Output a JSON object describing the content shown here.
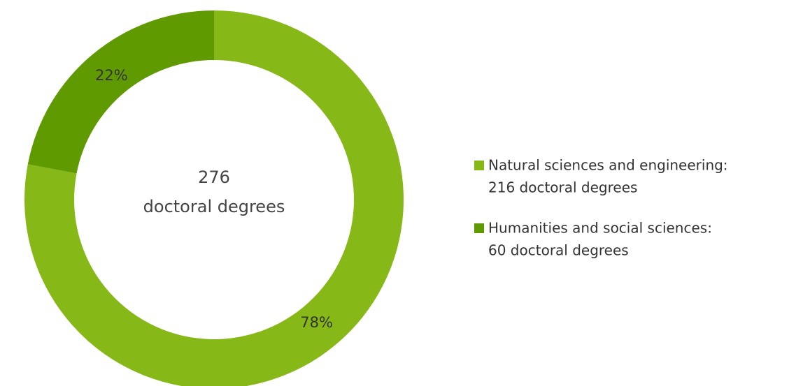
{
  "chart_data": {
    "type": "donut",
    "categories": [
      "Natural sciences and engineering:",
      "Humanities and social sciences:"
    ],
    "legend_details": [
      "216 doctoral degrees",
      "60 doctoral degrees"
    ],
    "values": [
      78,
      22
    ],
    "value_labels": [
      "78%",
      "22%"
    ],
    "colors": [
      "#86b817",
      "#5f9a00"
    ],
    "center_label": [
      "276",
      "doctoral degrees"
    ],
    "legend": "right"
  }
}
